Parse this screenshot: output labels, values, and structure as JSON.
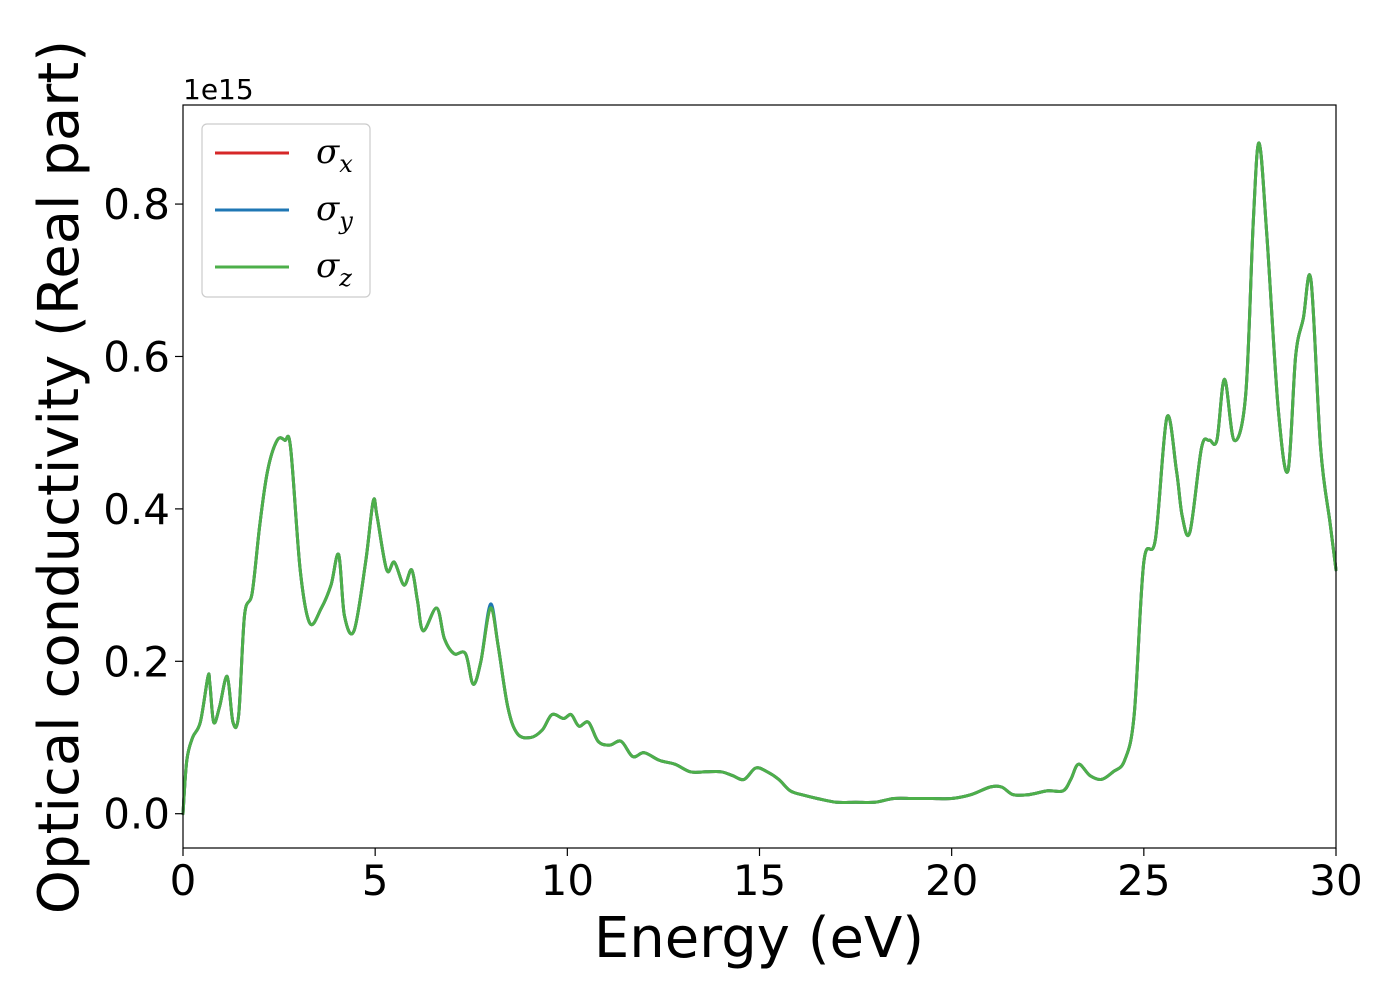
{
  "chart_data": {
    "type": "line",
    "xlabel": "Energy (eV)",
    "ylabel": "Optical conductivity (Real part)",
    "y_offset_label": "1e15",
    "xlim": [
      0,
      30
    ],
    "ylim": [
      -0.045,
      0.93
    ],
    "x_ticks": [
      0,
      5,
      10,
      15,
      20,
      25,
      30
    ],
    "x_tick_labels": [
      "0",
      "5",
      "10",
      "15",
      "20",
      "25",
      "30"
    ],
    "y_ticks": [
      0.0,
      0.2,
      0.4,
      0.6,
      0.8
    ],
    "y_tick_labels": [
      "0.0",
      "0.2",
      "0.4",
      "0.6",
      "0.8"
    ],
    "grid": false,
    "legend_position": "top-left",
    "x": [
      0,
      0.1,
      0.25,
      0.45,
      0.65,
      0.7,
      0.8,
      0.95,
      1.15,
      1.3,
      1.45,
      1.6,
      1.8,
      2.0,
      2.2,
      2.45,
      2.65,
      2.8,
      3.05,
      3.3,
      3.6,
      3.85,
      4.05,
      4.2,
      4.45,
      4.75,
      4.95,
      5.05,
      5.3,
      5.5,
      5.75,
      5.95,
      6.1,
      6.25,
      6.6,
      6.8,
      7.05,
      7.35,
      7.55,
      7.75,
      8.0,
      8.2,
      8.45,
      8.7,
      9.05,
      9.35,
      9.6,
      9.9,
      10.1,
      10.3,
      10.55,
      10.8,
      11.1,
      11.4,
      11.7,
      12.0,
      12.4,
      12.8,
      13.2,
      13.6,
      14.0,
      14.3,
      14.6,
      14.9,
      15.2,
      15.5,
      15.8,
      16.1,
      16.5,
      17.0,
      17.5,
      18.0,
      18.5,
      19.0,
      19.5,
      20.0,
      20.5,
      21.0,
      21.3,
      21.6,
      22.0,
      22.5,
      22.9,
      23.1,
      23.3,
      23.6,
      23.9,
      24.2,
      24.5,
      24.75,
      25.0,
      25.3,
      25.6,
      25.85,
      26.0,
      26.2,
      26.5,
      26.7,
      26.9,
      27.1,
      27.35,
      27.65,
      27.85,
      28.0,
      28.2,
      28.5,
      28.75,
      28.95,
      29.15,
      29.35,
      29.6,
      29.85,
      30.0
    ],
    "series": [
      {
        "name": "x",
        "color": "#d62728",
        "values": [
          0.0,
          0.07,
          0.1,
          0.12,
          0.18,
          0.17,
          0.12,
          0.14,
          0.18,
          0.12,
          0.13,
          0.26,
          0.29,
          0.38,
          0.45,
          0.49,
          0.49,
          0.48,
          0.32,
          0.25,
          0.27,
          0.3,
          0.34,
          0.26,
          0.24,
          0.33,
          0.41,
          0.39,
          0.32,
          0.33,
          0.3,
          0.32,
          0.28,
          0.24,
          0.27,
          0.23,
          0.21,
          0.21,
          0.17,
          0.2,
          0.27,
          0.22,
          0.14,
          0.105,
          0.1,
          0.11,
          0.13,
          0.125,
          0.13,
          0.115,
          0.12,
          0.095,
          0.09,
          0.095,
          0.075,
          0.08,
          0.07,
          0.065,
          0.055,
          0.055,
          0.055,
          0.05,
          0.045,
          0.06,
          0.055,
          0.045,
          0.03,
          0.025,
          0.02,
          0.015,
          0.015,
          0.015,
          0.02,
          0.02,
          0.02,
          0.02,
          0.025,
          0.035,
          0.035,
          0.025,
          0.025,
          0.03,
          0.03,
          0.045,
          0.065,
          0.05,
          0.045,
          0.055,
          0.07,
          0.13,
          0.33,
          0.36,
          0.52,
          0.45,
          0.39,
          0.37,
          0.48,
          0.49,
          0.49,
          0.57,
          0.49,
          0.55,
          0.78,
          0.88,
          0.76,
          0.53,
          0.45,
          0.6,
          0.65,
          0.7,
          0.48,
          0.38,
          0.32
        ]
      },
      {
        "name": "y",
        "color": "#1f77b4",
        "values": [
          0.0,
          0.07,
          0.1,
          0.12,
          0.18,
          0.17,
          0.12,
          0.14,
          0.18,
          0.12,
          0.13,
          0.26,
          0.29,
          0.38,
          0.45,
          0.49,
          0.49,
          0.48,
          0.32,
          0.25,
          0.27,
          0.3,
          0.34,
          0.26,
          0.24,
          0.33,
          0.41,
          0.39,
          0.32,
          0.33,
          0.3,
          0.32,
          0.28,
          0.24,
          0.27,
          0.23,
          0.21,
          0.21,
          0.17,
          0.2,
          0.275,
          0.22,
          0.14,
          0.105,
          0.1,
          0.11,
          0.13,
          0.125,
          0.13,
          0.115,
          0.12,
          0.095,
          0.09,
          0.095,
          0.075,
          0.08,
          0.07,
          0.065,
          0.055,
          0.055,
          0.055,
          0.05,
          0.045,
          0.06,
          0.055,
          0.045,
          0.03,
          0.025,
          0.02,
          0.015,
          0.015,
          0.015,
          0.02,
          0.02,
          0.02,
          0.02,
          0.025,
          0.035,
          0.035,
          0.025,
          0.025,
          0.03,
          0.03,
          0.045,
          0.065,
          0.05,
          0.045,
          0.055,
          0.07,
          0.13,
          0.33,
          0.36,
          0.52,
          0.45,
          0.39,
          0.37,
          0.48,
          0.49,
          0.49,
          0.57,
          0.49,
          0.55,
          0.78,
          0.88,
          0.76,
          0.53,
          0.45,
          0.6,
          0.65,
          0.7,
          0.48,
          0.38,
          0.32
        ]
      },
      {
        "name": "z",
        "color": "#4daf4a",
        "values": [
          0.0,
          0.07,
          0.1,
          0.12,
          0.18,
          0.17,
          0.12,
          0.14,
          0.18,
          0.12,
          0.13,
          0.26,
          0.29,
          0.38,
          0.45,
          0.49,
          0.49,
          0.48,
          0.32,
          0.25,
          0.27,
          0.3,
          0.34,
          0.26,
          0.24,
          0.33,
          0.41,
          0.39,
          0.32,
          0.33,
          0.3,
          0.32,
          0.28,
          0.24,
          0.27,
          0.23,
          0.21,
          0.21,
          0.17,
          0.2,
          0.27,
          0.22,
          0.14,
          0.105,
          0.1,
          0.11,
          0.13,
          0.125,
          0.13,
          0.115,
          0.12,
          0.095,
          0.09,
          0.095,
          0.075,
          0.08,
          0.07,
          0.065,
          0.055,
          0.055,
          0.055,
          0.05,
          0.045,
          0.06,
          0.055,
          0.045,
          0.03,
          0.025,
          0.02,
          0.015,
          0.015,
          0.015,
          0.02,
          0.02,
          0.02,
          0.02,
          0.025,
          0.035,
          0.035,
          0.025,
          0.025,
          0.03,
          0.03,
          0.045,
          0.065,
          0.05,
          0.045,
          0.055,
          0.07,
          0.13,
          0.33,
          0.36,
          0.52,
          0.45,
          0.39,
          0.37,
          0.48,
          0.49,
          0.49,
          0.57,
          0.49,
          0.55,
          0.78,
          0.88,
          0.76,
          0.53,
          0.45,
          0.6,
          0.65,
          0.7,
          0.48,
          0.38,
          0.32
        ]
      }
    ],
    "legend": [
      {
        "symbol": "σ",
        "subscript": "x",
        "color": "#d62728"
      },
      {
        "symbol": "σ",
        "subscript": "y",
        "color": "#1f77b4"
      },
      {
        "symbol": "σ",
        "subscript": "z",
        "color": "#4daf4a"
      }
    ]
  }
}
